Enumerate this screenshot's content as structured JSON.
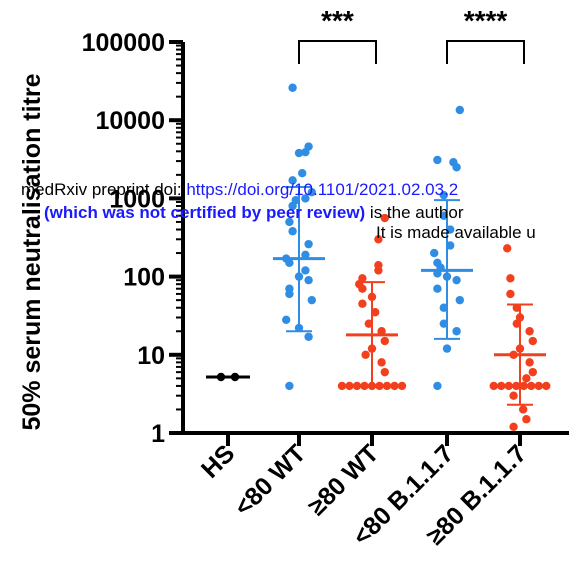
{
  "chart_data": {
    "type": "scatter",
    "ylabel": "50% serum neutralisation titre",
    "yscale": "log",
    "ylim": [
      1,
      100000
    ],
    "yticks": [
      "1",
      "10",
      "100",
      "1000",
      "10000",
      "100000"
    ],
    "categories": [
      "HS",
      "<80 WT",
      "≥80 WT",
      "<80 B.1.1.7",
      "≥80 B.1.1.7"
    ],
    "series": [
      {
        "category": "HS",
        "color": "#000000",
        "median": 5.2,
        "points": [
          5.2,
          5.2
        ]
      },
      {
        "category": "<80 WT",
        "color": "#2F8DE4",
        "median": 170,
        "error": [
          20,
          1400
        ],
        "points": [
          26000,
          4600,
          3900,
          3800,
          2100,
          1700,
          1200,
          1000,
          950,
          800,
          500,
          380,
          260,
          190,
          170,
          150,
          120,
          100,
          90,
          70,
          60,
          50,
          28,
          22,
          17,
          4
        ]
      },
      {
        "category": "≥80 WT",
        "color": "#F2401E",
        "median": 18,
        "error": [
          4,
          85
        ],
        "points": [
          560,
          300,
          140,
          120,
          95,
          80,
          70,
          55,
          45,
          35,
          25,
          20,
          15,
          12,
          10,
          8,
          6,
          4,
          4,
          4,
          4,
          4,
          4,
          4,
          4,
          4
        ]
      },
      {
        "category": "<80 B.1.1.7",
        "color": "#2F8DE4",
        "median": 120,
        "error": [
          16,
          950
        ],
        "points": [
          13500,
          3100,
          2900,
          2500,
          1100,
          600,
          400,
          250,
          200,
          150,
          130,
          110,
          100,
          90,
          70,
          50,
          40,
          25,
          20,
          12,
          4
        ]
      },
      {
        "category": "≥80 B.1.1.7",
        "color": "#F2401E",
        "median": 10,
        "error": [
          2.3,
          44
        ],
        "points": [
          230,
          95,
          60,
          40,
          30,
          25,
          20,
          15,
          12,
          10,
          8,
          6,
          5,
          4,
          4,
          4,
          4,
          4,
          4,
          4,
          4,
          3,
          2,
          1.5,
          1.2
        ]
      }
    ],
    "annotations": [
      {
        "from": "<80 WT",
        "to": "≥80 WT",
        "text": "***"
      },
      {
        "from": "<80 B.1.1.7",
        "to": "≥80 B.1.1.7",
        "text": "****"
      }
    ]
  },
  "watermark": {
    "line1_prefix": "medRxiv preprint doi: ",
    "line1_link": "https://doi.org/10.1101/2021.02.03.2",
    "line2_bold": "(which was not certified by peer review)",
    "line2_rest": " is the author",
    "line3": "It is made available u"
  }
}
